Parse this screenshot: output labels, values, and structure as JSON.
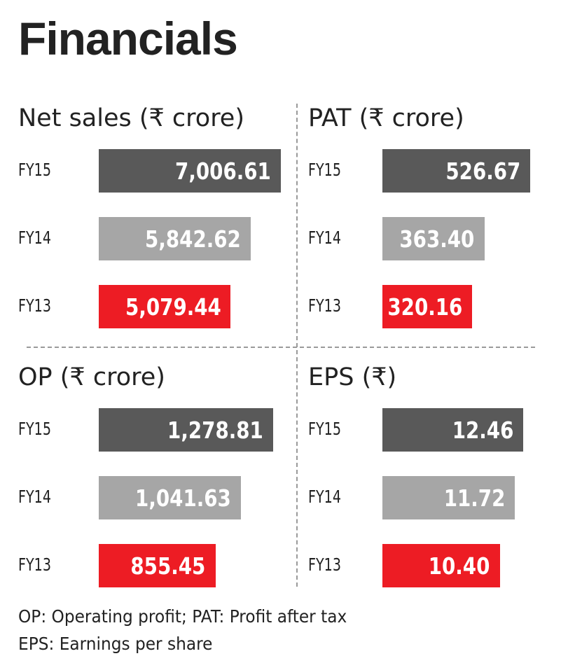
{
  "title": "Financials",
  "colors": {
    "FY15": "#595959",
    "FY14": "#a6a6a6",
    "FY13": "#ed1c24"
  },
  "chart_data": [
    {
      "type": "bar",
      "orientation": "horizontal",
      "title": "Net sales (₹ crore)",
      "categories": [
        "FY15",
        "FY14",
        "FY13"
      ],
      "values": [
        7006.61,
        5842.62,
        5079.44
      ],
      "value_labels": [
        "7,006.61",
        "5,842.62",
        "5,079.44"
      ],
      "data_labels": true
    },
    {
      "type": "bar",
      "orientation": "horizontal",
      "title": "PAT (₹ crore)",
      "categories": [
        "FY15",
        "FY14",
        "FY13"
      ],
      "values": [
        526.67,
        363.4,
        320.16
      ],
      "value_labels": [
        "526.67",
        "363.40",
        "320.16"
      ],
      "data_labels": true
    },
    {
      "type": "bar",
      "orientation": "horizontal",
      "title": "OP (₹ crore)",
      "categories": [
        "FY15",
        "FY14",
        "FY13"
      ],
      "values": [
        1278.81,
        1041.63,
        855.45
      ],
      "value_labels": [
        "1,278.81",
        "1,041.63",
        "855.45"
      ],
      "data_labels": true
    },
    {
      "type": "bar",
      "orientation": "horizontal",
      "title": "EPS (₹)",
      "categories": [
        "FY15",
        "FY14",
        "FY13"
      ],
      "values": [
        12.46,
        11.72,
        10.4
      ],
      "value_labels": [
        "12.46",
        "11.72",
        "10.40"
      ],
      "data_labels": true
    }
  ],
  "footnotes": [
    "OP: Operating profit; PAT: Profit after tax",
    "EPS: Earnings per share"
  ]
}
